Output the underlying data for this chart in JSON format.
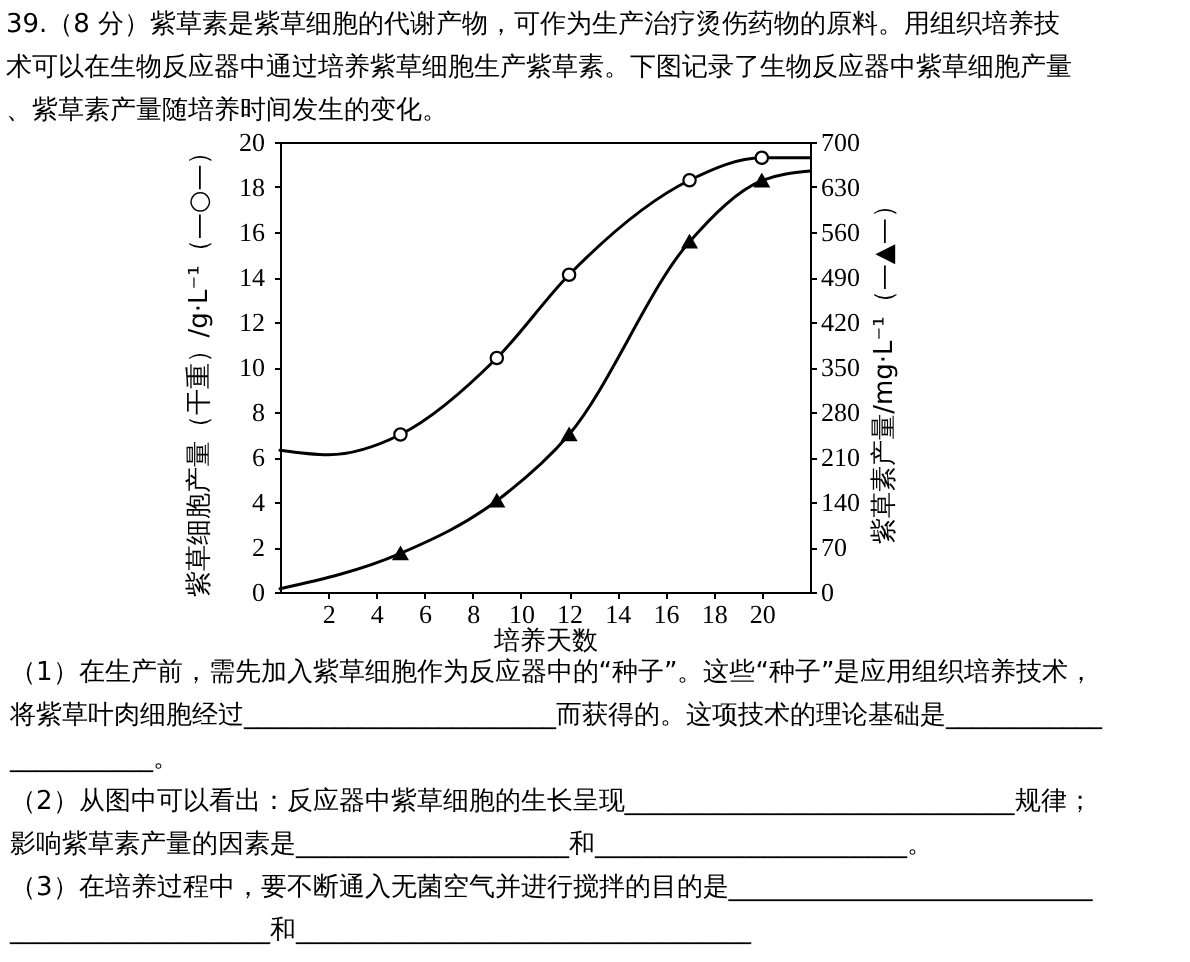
{
  "chart_data": {
    "type": "line",
    "title": "39.（8 分）紫草素是紫草细胞的代谢产物，可作为生产治疗烫伤药物的原料。用组织培养技术可以在生物反应器中通过培养紫草细胞生产紫草素。下图记录了生物反应器中紫草细胞产量、紫草素产量随培养时间发生的变化。",
    "xlabel": "培养天数",
    "ylabel": "紫草细胞产量（干重）/g·L⁻¹（—○—）",
    "y2label": "紫草素产量/mg·L⁻¹（—▲—）",
    "xlim": [
      0,
      22
    ],
    "xticks": [
      2,
      4,
      6,
      8,
      10,
      12,
      14,
      16,
      18,
      20
    ],
    "ylim": [
      0,
      20
    ],
    "yticks": [
      0,
      2,
      4,
      6,
      8,
      10,
      12,
      14,
      16,
      18,
      20
    ],
    "y2lim": [
      0,
      700
    ],
    "y2ticks": [
      0,
      70,
      140,
      210,
      280,
      350,
      420,
      490,
      560,
      630,
      700
    ],
    "line_style": "solid",
    "series": [
      {
        "axis": "y",
        "color": "#000000",
        "marker": "none",
        "x": [
          0,
          2,
          5,
          9,
          12,
          17,
          20,
          22
        ],
        "values": [
          6.3,
          6.1,
          7.0,
          10.4,
          14.1,
          18.3,
          19.3,
          19.3
        ]
      },
      {
        "type": "scatter",
        "axis": "y",
        "color": "#000000",
        "marker": "circle",
        "x": [
          5,
          9,
          12,
          17,
          20
        ],
        "values": [
          7.0,
          10.4,
          14.1,
          18.3,
          19.3
        ]
      },
      {
        "axis": "y2",
        "color": "#000000",
        "marker": "none",
        "x": [
          0,
          5,
          9,
          12,
          17,
          20,
          22
        ],
        "values": [
          5,
          60,
          142,
          245,
          545,
          640,
          655
        ]
      },
      {
        "type": "scatter",
        "axis": "y2",
        "color": "#000000",
        "marker": "triangle",
        "x": [
          5,
          9,
          12,
          17,
          20
        ],
        "values": [
          60,
          142,
          245,
          545,
          640
        ]
      }
    ],
    "annotations": [
      "（1）在生产前，需先加入紫草细胞作为反应器中的“种子”。这些“种子”是应用组织培养技术，将紫草叶肉细胞经过________________________而获得的。这项技术的理论基础是_______________________。",
      "（2）从图中可以看出：反应器中紫草细胞的生长呈现______________________________规律；影响紫草素产量的因素是_____________________和________________________。",
      "（3）在培养过程中，要不断通入无菌空气并进行搅拌的目的是________________________________________________和___________________________________"
    ]
  }
}
